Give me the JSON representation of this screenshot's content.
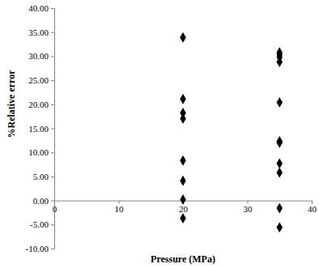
{
  "chart_data": {
    "type": "scatter",
    "x_label": "Pressure (MPa)",
    "y_label": "%Relative error",
    "x": [
      20,
      20,
      20,
      20,
      20,
      20,
      20,
      20,
      35,
      35,
      35,
      35,
      35,
      35,
      35,
      35,
      35,
      35,
      35
    ],
    "values": [
      33.9,
      21.1,
      18.2,
      17.0,
      8.3,
      4.1,
      0.2,
      -3.7,
      30.8,
      30.3,
      29.8,
      28.8,
      20.4,
      12.3,
      12.0,
      7.7,
      5.8,
      -1.6,
      -5.6
    ],
    "color": "#000000",
    "marker": "diamond",
    "xlim": [
      0,
      40
    ],
    "xticks": [
      0,
      10,
      20,
      30,
      40
    ],
    "ylim": [
      -10,
      40
    ],
    "yticks": [
      {
        "value": -10,
        "label": "-10.00"
      },
      {
        "value": -5,
        "label": "-5.00"
      },
      {
        "value": 0,
        "label": "0.00"
      },
      {
        "value": 5,
        "label": "5.00"
      },
      {
        "value": 10,
        "label": "10.00"
      },
      {
        "value": 15,
        "label": "15.00"
      },
      {
        "value": 20,
        "label": "20.00"
      },
      {
        "value": 25,
        "label": "25.00"
      },
      {
        "value": 30,
        "label": "30.00"
      },
      {
        "value": 35,
        "label": "35.00"
      },
      {
        "value": 40,
        "label": "40.00"
      }
    ],
    "grid": false
  }
}
